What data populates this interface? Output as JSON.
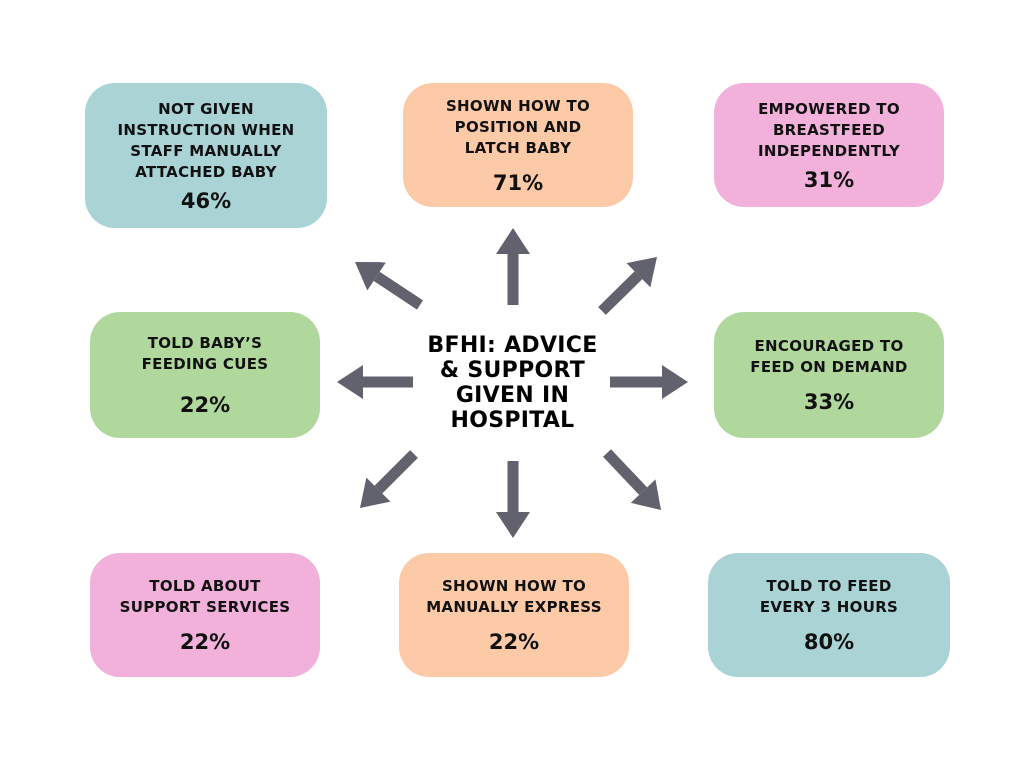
{
  "title": "BFHI: ADVICE & SUPPORT GIVEN IN HOSPITAL",
  "colors": {
    "teal": "#a9d3d5",
    "peach": "#fdcaa8",
    "pink": "#f2b1db",
    "green": "#b0d89c",
    "arrow": "#62616e"
  },
  "items": [
    {
      "label": "NOT GIVEN INSTRUCTION WHEN STAFF MANUALLY ATTACHED BABY",
      "value": "46%",
      "color": "teal"
    },
    {
      "label": "SHOWN HOW TO POSITION AND LATCH BABY",
      "value": "71%",
      "color": "peach"
    },
    {
      "label": "EMPOWERED TO BREASTFEED INDEPENDENTLY",
      "value": "31%",
      "color": "pink"
    },
    {
      "label": "TOLD BABY’S FEEDING CUES",
      "value": "22%",
      "color": "green"
    },
    {
      "label": "ENCOURAGED TO FEED ON DEMAND",
      "value": "33%",
      "color": "green"
    },
    {
      "label": "TOLD ABOUT SUPPORT SERVICES",
      "value": "22%",
      "color": "pink"
    },
    {
      "label": "SHOWN HOW TO MANUALLY EXPRESS",
      "value": "22%",
      "color": "peach"
    },
    {
      "label": "TOLD TO FEED EVERY 3 HOURS",
      "value": "80%",
      "color": "teal"
    }
  ]
}
